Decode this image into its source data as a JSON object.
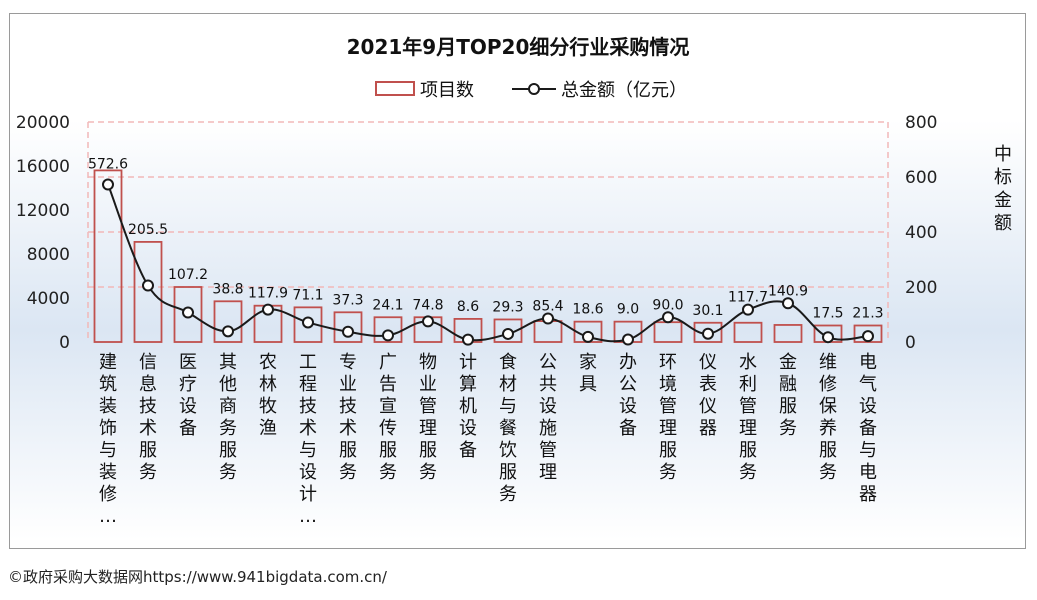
{
  "chart_data": {
    "type": "bar",
    "title": "2021年9月TOP20细分行业采购情况",
    "categories": [
      "建筑装饰与装修…",
      "信息技术服务",
      "医疗设备",
      "其他商务服务",
      "农林牧渔",
      "工程技术与设计…",
      "专业技术服务",
      "广告宣传服务",
      "物业管理服务",
      "计算机设备",
      "食材与餐饮服务",
      "公共设施管理",
      "家具",
      "办公设备",
      "环境管理服务",
      "仪表仪器",
      "水利管理服务",
      "金融服务",
      "维修保养服务",
      "电气设备与电器"
    ],
    "series": [
      {
        "name": "项目数",
        "type": "bar",
        "axis": "left",
        "values": [
          15600,
          9100,
          5000,
          3700,
          3300,
          3150,
          2700,
          2250,
          2250,
          2100,
          2050,
          1900,
          1850,
          1850,
          1800,
          1750,
          1750,
          1550,
          1500,
          1500
        ]
      },
      {
        "name": "总金额（亿元）",
        "type": "line",
        "axis": "right",
        "values": [
          572.6,
          205.5,
          107.2,
          38.8,
          117.9,
          71.1,
          37.3,
          24.1,
          74.8,
          8.6,
          29.3,
          85.4,
          18.6,
          9.0,
          90.0,
          30.1,
          117.7,
          140.9,
          17.5,
          21.3
        ],
        "labels": [
          "572.6",
          "205.5",
          "107.2",
          "38.8",
          "117.9",
          "71.1",
          "37.3",
          "24.1",
          "74.8",
          "8.6",
          "29.3",
          "85.4",
          "18.6",
          "9.0",
          "90.0",
          "30.1",
          "117.7",
          "140.9",
          "17.5",
          "21.3"
        ]
      }
    ],
    "y_left": {
      "min": 0,
      "max": 20000,
      "ticks": [
        "0",
        "4000",
        "8000",
        "12000",
        "16000",
        "20000"
      ]
    },
    "y_right": {
      "min": 0,
      "max": 800,
      "ticks": [
        "0",
        "200",
        "400",
        "600",
        "800"
      ],
      "label": "中标金额"
    },
    "legend_position": "top-center",
    "grid": "dashed",
    "colors": {
      "bar_stroke": "#c0504d",
      "line": "#1a1a1a",
      "grid": "#f2b8b8",
      "band_top": "#ffffff",
      "band_mid": "#dbe6f3"
    }
  },
  "source_note": "©政府采购大数据网https://www.941bigdata.com.cn/"
}
